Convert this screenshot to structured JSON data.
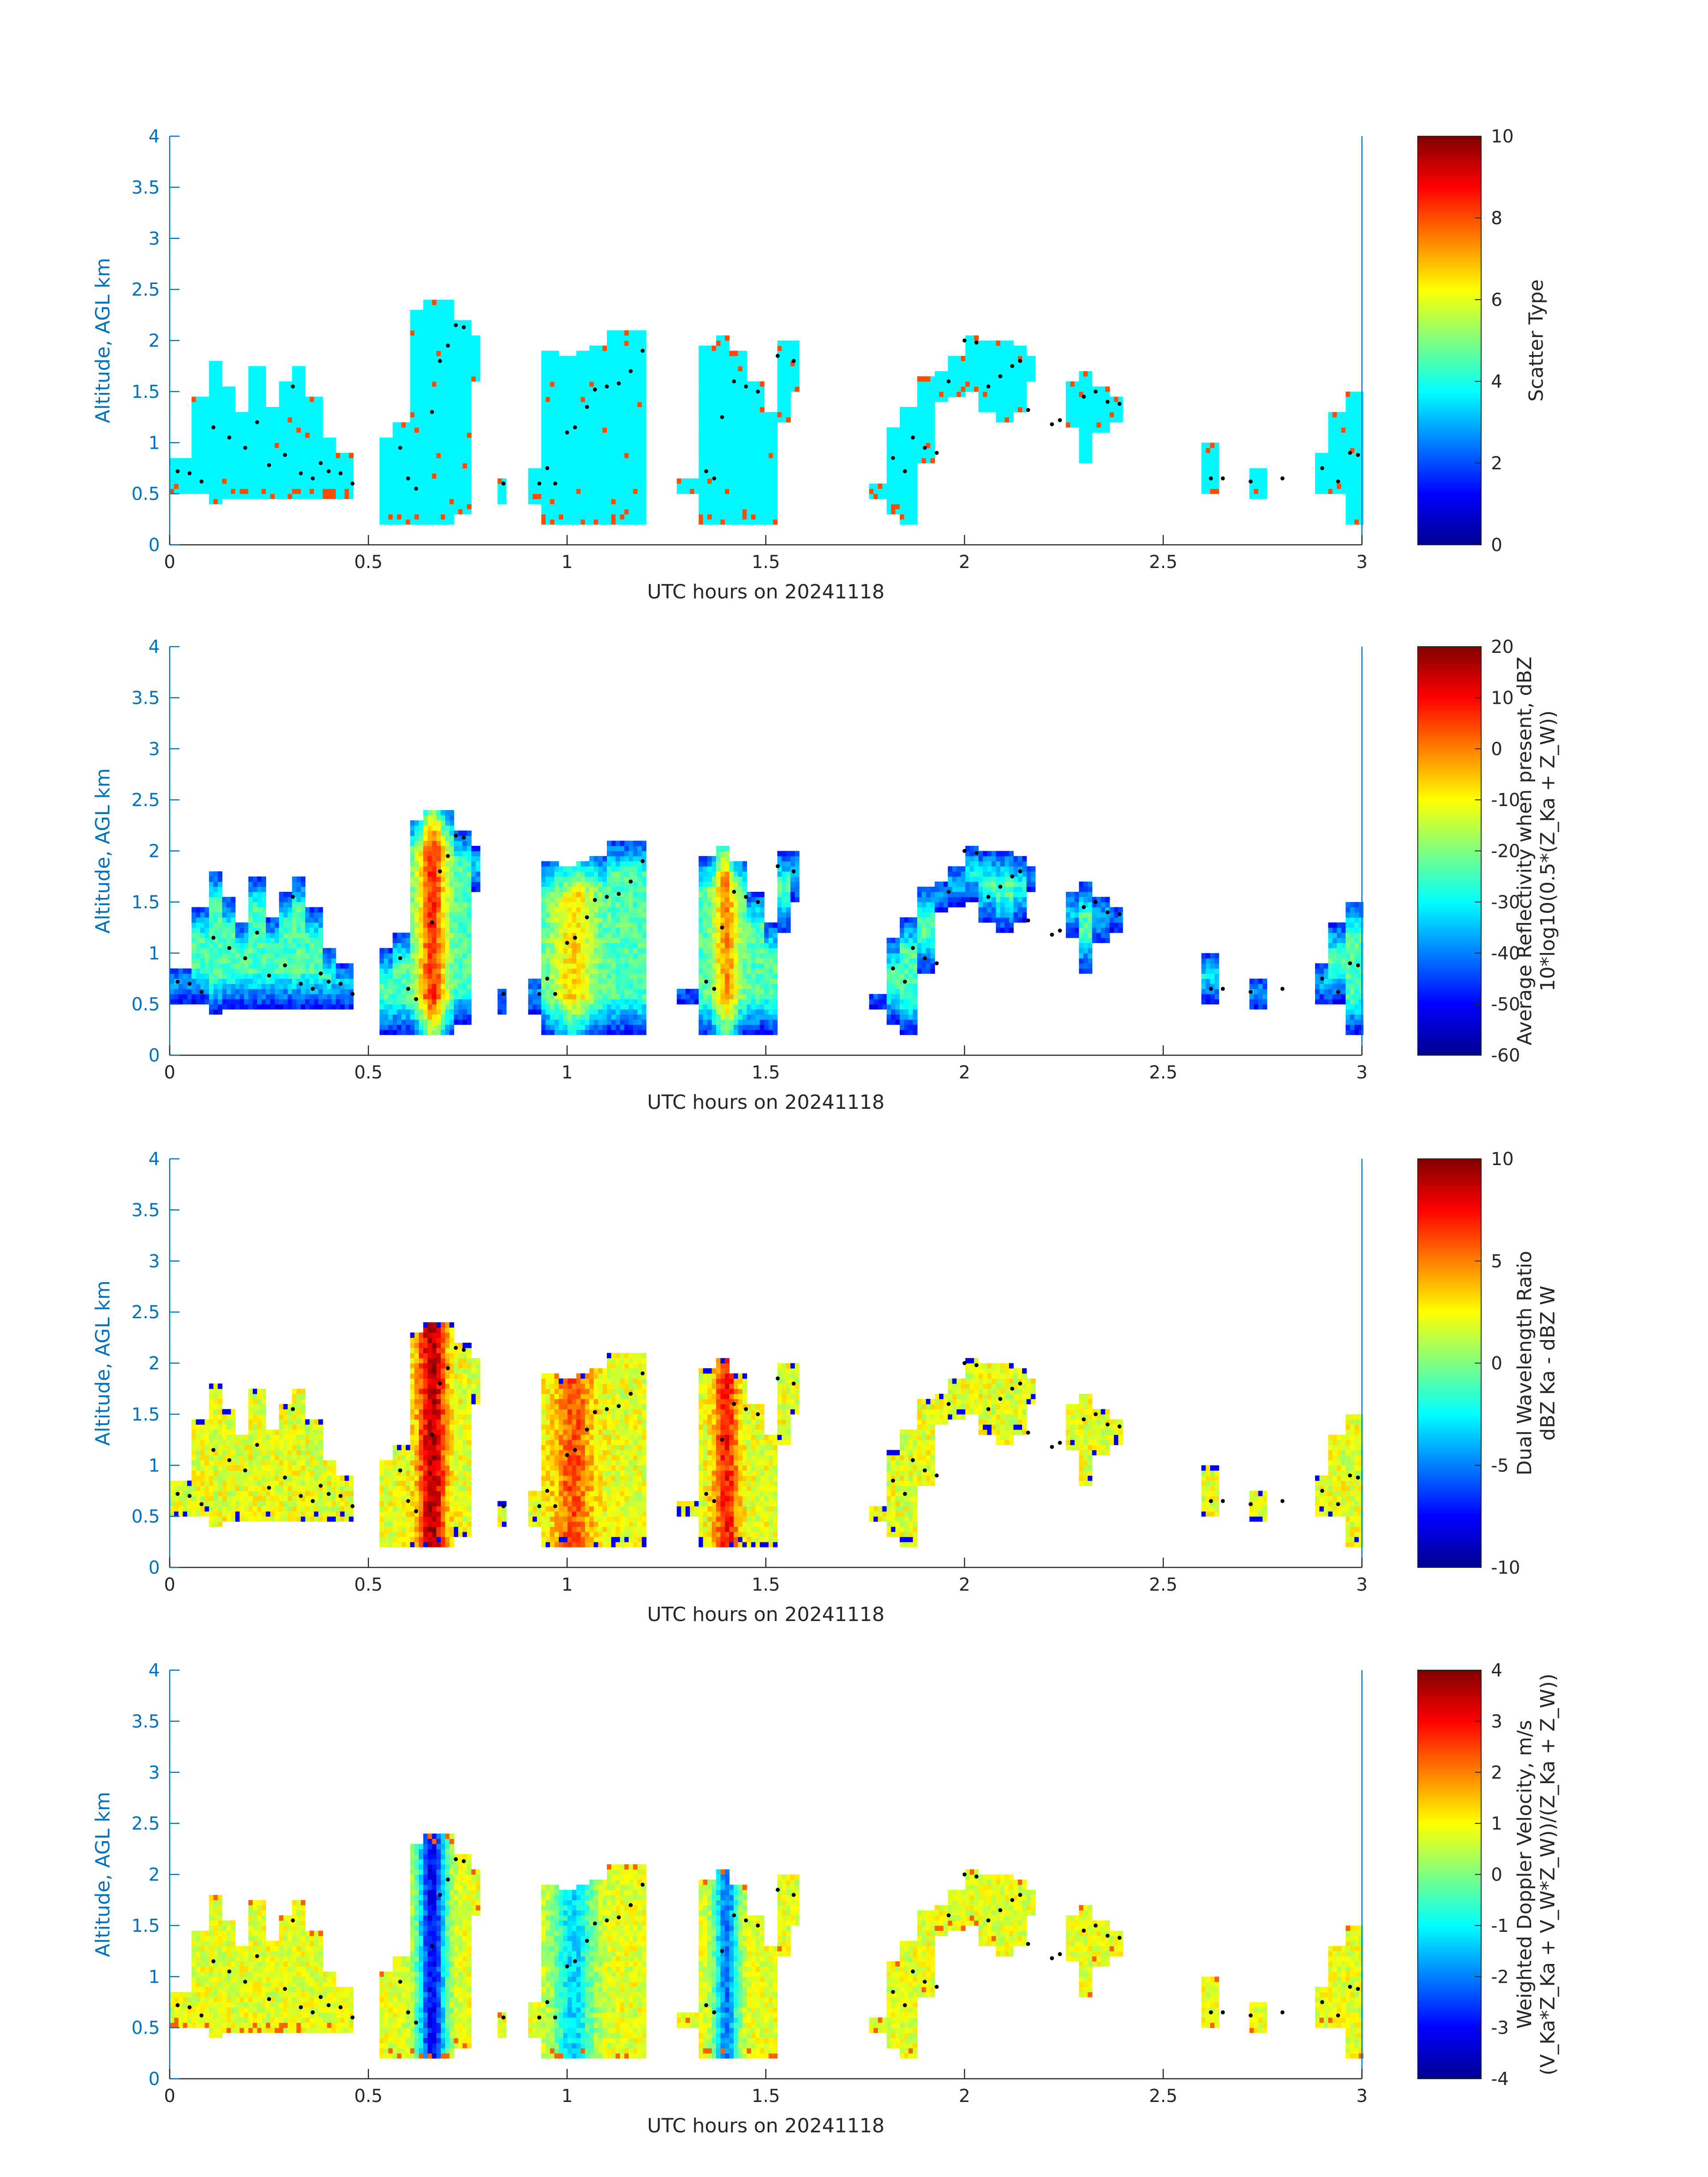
{
  "chart_data": [
    {
      "type": "heatmap",
      "title": "",
      "xlabel": "UTC hours on 20241118",
      "ylabel": "Altitude, AGL km",
      "xlim": [
        0,
        3
      ],
      "ylim": [
        0,
        4
      ],
      "x_ticks": [
        "0",
        "0.5",
        "1",
        "1.5",
        "2",
        "2.5",
        "3"
      ],
      "y_ticks": [
        "0",
        "0.5",
        "1",
        "1.5",
        "2",
        "2.5",
        "3",
        "3.5",
        "4"
      ],
      "colorbar": {
        "label_lines": [
          "Scatter Type"
        ],
        "range": [
          0,
          10
        ],
        "ticks": [
          "0",
          "2",
          "4",
          "6",
          "8",
          "10"
        ]
      },
      "value_note": "Mostly scatter type ~3.7 (cyan), with scattered type ~8 (red-orange) columns near cloud edges",
      "dominant_value": 3.7,
      "secondary_value": 8
    },
    {
      "type": "heatmap",
      "title": "",
      "xlabel": "UTC hours on 20241118",
      "ylabel": "Altitude, AGL km",
      "xlim": [
        0,
        3
      ],
      "ylim": [
        0,
        4
      ],
      "x_ticks": [
        "0",
        "0.5",
        "1",
        "1.5",
        "2",
        "2.5",
        "3"
      ],
      "y_ticks": [
        "0",
        "0.5",
        "1",
        "1.5",
        "2",
        "2.5",
        "3",
        "3.5",
        "4"
      ],
      "colorbar": {
        "label_lines": [
          "Average Reflectivity when present, dBZ",
          "10*log10(0.5*(Z_Ka + Z_W))"
        ],
        "range": [
          -60,
          20
        ],
        "ticks": [
          "-60",
          "-50",
          "-40",
          "-30",
          "-20",
          "-10",
          "0",
          "10",
          "20"
        ]
      },
      "value_note": "Cloud edges ~-55 dBZ, interior ~-25 dBZ, cores near 0.65 h and 1.4 h up to ~+5 dBZ"
    },
    {
      "type": "heatmap",
      "title": "",
      "xlabel": "UTC hours on 20241118",
      "ylabel": "Altitude, AGL km",
      "xlim": [
        0,
        3
      ],
      "ylim": [
        0,
        4
      ],
      "x_ticks": [
        "0",
        "0.5",
        "1",
        "1.5",
        "2",
        "2.5",
        "3"
      ],
      "y_ticks": [
        "0",
        "0.5",
        "1",
        "1.5",
        "2",
        "2.5",
        "3",
        "3.5",
        "4"
      ],
      "colorbar": {
        "label_lines": [
          "Dual Wavelength Ratio",
          "dBZ Ka - dBZ W"
        ],
        "range": [
          -10,
          10
        ],
        "ticks": [
          "-10",
          "-5",
          "0",
          "5",
          "10"
        ]
      },
      "value_note": "Mostly 0 to +3 dB, up to +9 dB in the 0.65 h core"
    },
    {
      "type": "heatmap",
      "title": "",
      "xlabel": "UTC hours on 20241118",
      "ylabel": "Altitude, AGL km",
      "xlim": [
        0,
        3
      ],
      "ylim": [
        0,
        4
      ],
      "x_ticks": [
        "0",
        "0.5",
        "1",
        "1.5",
        "2",
        "2.5",
        "3"
      ],
      "y_ticks": [
        "0",
        "0.5",
        "1",
        "1.5",
        "2",
        "2.5",
        "3",
        "3.5",
        "4"
      ],
      "colorbar": {
        "label_lines": [
          "Weighted Doppler Velocity, m/s",
          "(V_Ka*Z_Ka + V_W*Z_W))/(Z_Ka + Z_W))"
        ],
        "range": [
          -4,
          4
        ],
        "ticks": [
          "-4",
          "-3",
          "-2",
          "-1",
          "0",
          "1",
          "2",
          "3",
          "4"
        ]
      },
      "value_note": "Mostly -0.5 to +1 m/s, downward to ~-3.5 m/s in the 0.65 h core"
    }
  ],
  "cloud_columns": [
    {
      "t0": 0.0,
      "t1": 0.05,
      "base": 0.5,
      "top": 0.85
    },
    {
      "t0": 0.05,
      "t1": 0.1,
      "base": 0.5,
      "top": 1.45
    },
    {
      "t0": 0.1,
      "t1": 0.13,
      "base": 0.4,
      "top": 1.8
    },
    {
      "t0": 0.13,
      "t1": 0.17,
      "base": 0.45,
      "top": 1.55
    },
    {
      "t0": 0.17,
      "t1": 0.2,
      "base": 0.45,
      "top": 1.3
    },
    {
      "t0": 0.2,
      "t1": 0.24,
      "base": 0.45,
      "top": 1.75
    },
    {
      "t0": 0.24,
      "t1": 0.27,
      "base": 0.45,
      "top": 1.35
    },
    {
      "t0": 0.27,
      "t1": 0.31,
      "base": 0.45,
      "top": 1.6
    },
    {
      "t0": 0.31,
      "t1": 0.34,
      "base": 0.45,
      "top": 1.75
    },
    {
      "t0": 0.34,
      "t1": 0.38,
      "base": 0.45,
      "top": 1.45
    },
    {
      "t0": 0.38,
      "t1": 0.42,
      "base": 0.45,
      "top": 1.05
    },
    {
      "t0": 0.42,
      "t1": 0.46,
      "base": 0.45,
      "top": 0.9
    },
    {
      "t0": 0.53,
      "t1": 0.56,
      "base": 0.2,
      "top": 1.05
    },
    {
      "t0": 0.56,
      "t1": 0.6,
      "base": 0.2,
      "top": 1.2
    },
    {
      "t0": 0.6,
      "t1": 0.64,
      "base": 0.2,
      "top": 2.3
    },
    {
      "t0": 0.64,
      "t1": 0.68,
      "base": 0.2,
      "top": 2.35
    },
    {
      "t0": 0.68,
      "t1": 0.72,
      "base": 0.2,
      "top": 2.35
    },
    {
      "t0": 0.72,
      "t1": 0.76,
      "base": 0.3,
      "top": 2.2
    },
    {
      "t0": 0.76,
      "t1": 0.78,
      "base": 1.6,
      "top": 2.05
    },
    {
      "t0": 0.83,
      "t1": 0.85,
      "base": 0.4,
      "top": 0.65
    },
    {
      "t0": 0.9,
      "t1": 0.94,
      "base": 0.4,
      "top": 0.75
    },
    {
      "t0": 0.94,
      "t1": 0.98,
      "base": 0.2,
      "top": 1.9
    },
    {
      "t0": 0.98,
      "t1": 1.02,
      "base": 0.2,
      "top": 1.85
    },
    {
      "t0": 1.02,
      "t1": 1.06,
      "base": 0.2,
      "top": 1.9
    },
    {
      "t0": 1.06,
      "t1": 1.1,
      "base": 0.2,
      "top": 1.95
    },
    {
      "t0": 1.1,
      "t1": 1.14,
      "base": 0.2,
      "top": 2.1
    },
    {
      "t0": 1.14,
      "t1": 1.2,
      "base": 0.2,
      "top": 2.1
    },
    {
      "t0": 1.28,
      "t1": 1.33,
      "base": 0.5,
      "top": 0.65
    },
    {
      "t0": 1.33,
      "t1": 1.37,
      "base": 0.2,
      "top": 1.95
    },
    {
      "t0": 1.37,
      "t1": 1.41,
      "base": 0.2,
      "top": 2.05
    },
    {
      "t0": 1.41,
      "t1": 1.45,
      "base": 0.2,
      "top": 1.9
    },
    {
      "t0": 1.45,
      "t1": 1.5,
      "base": 0.2,
      "top": 1.6
    },
    {
      "t0": 1.5,
      "t1": 1.53,
      "base": 0.2,
      "top": 1.3
    },
    {
      "t0": 1.53,
      "t1": 1.56,
      "base": 1.2,
      "top": 2.0
    },
    {
      "t0": 1.56,
      "t1": 1.58,
      "base": 1.5,
      "top": 2.0
    },
    {
      "t0": 1.76,
      "t1": 1.8,
      "base": 0.45,
      "top": 0.6
    },
    {
      "t0": 1.8,
      "t1": 1.84,
      "base": 0.3,
      "top": 1.15
    },
    {
      "t0": 1.84,
      "t1": 1.88,
      "base": 0.2,
      "top": 1.35
    },
    {
      "t0": 1.88,
      "t1": 1.92,
      "base": 0.8,
      "top": 1.65
    },
    {
      "t0": 1.92,
      "t1": 1.96,
      "base": 1.4,
      "top": 1.7
    },
    {
      "t0": 1.96,
      "t1": 2.0,
      "base": 1.45,
      "top": 1.85
    },
    {
      "t0": 2.0,
      "t1": 2.04,
      "base": 1.5,
      "top": 2.05
    },
    {
      "t0": 2.04,
      "t1": 2.08,
      "base": 1.3,
      "top": 2.0
    },
    {
      "t0": 2.08,
      "t1": 2.12,
      "base": 1.2,
      "top": 2.0
    },
    {
      "t0": 2.12,
      "t1": 2.16,
      "base": 1.3,
      "top": 1.95
    },
    {
      "t0": 2.16,
      "t1": 2.18,
      "base": 1.6,
      "top": 1.85
    },
    {
      "t0": 2.26,
      "t1": 2.29,
      "base": 1.15,
      "top": 1.6
    },
    {
      "t0": 2.29,
      "t1": 2.32,
      "base": 0.8,
      "top": 1.7
    },
    {
      "t0": 2.32,
      "t1": 2.36,
      "base": 1.1,
      "top": 1.55
    },
    {
      "t0": 2.36,
      "t1": 2.4,
      "base": 1.2,
      "top": 1.45
    },
    {
      "t0": 2.6,
      "t1": 2.64,
      "base": 0.5,
      "top": 1.0
    },
    {
      "t0": 2.72,
      "t1": 2.76,
      "base": 0.45,
      "top": 0.75
    },
    {
      "t0": 2.88,
      "t1": 2.92,
      "base": 0.5,
      "top": 0.9
    },
    {
      "t0": 2.92,
      "t1": 2.96,
      "base": 0.5,
      "top": 1.3
    },
    {
      "t0": 2.96,
      "t1": 3.0,
      "base": 0.2,
      "top": 1.5
    }
  ],
  "cloud_top_points": [
    {
      "t": 0.02,
      "alt": 0.72
    },
    {
      "t": 0.05,
      "alt": 0.7
    },
    {
      "t": 0.08,
      "alt": 0.62
    },
    {
      "t": 0.11,
      "alt": 1.15
    },
    {
      "t": 0.15,
      "alt": 1.05
    },
    {
      "t": 0.19,
      "alt": 0.95
    },
    {
      "t": 0.22,
      "alt": 1.2
    },
    {
      "t": 0.25,
      "alt": 0.78
    },
    {
      "t": 0.29,
      "alt": 0.88
    },
    {
      "t": 0.31,
      "alt": 1.55
    },
    {
      "t": 0.33,
      "alt": 0.7
    },
    {
      "t": 0.36,
      "alt": 0.65
    },
    {
      "t": 0.38,
      "alt": 0.8
    },
    {
      "t": 0.4,
      "alt": 0.72
    },
    {
      "t": 0.43,
      "alt": 0.7
    },
    {
      "t": 0.46,
      "alt": 0.6
    },
    {
      "t": 0.58,
      "alt": 0.95
    },
    {
      "t": 0.6,
      "alt": 0.65
    },
    {
      "t": 0.62,
      "alt": 0.55
    },
    {
      "t": 0.66,
      "alt": 1.3
    },
    {
      "t": 0.68,
      "alt": 1.8
    },
    {
      "t": 0.7,
      "alt": 1.95
    },
    {
      "t": 0.72,
      "alt": 2.15
    },
    {
      "t": 0.74,
      "alt": 2.13
    },
    {
      "t": 0.84,
      "alt": 0.6
    },
    {
      "t": 0.93,
      "alt": 0.6
    },
    {
      "t": 0.95,
      "alt": 0.75
    },
    {
      "t": 0.97,
      "alt": 0.6
    },
    {
      "t": 1.0,
      "alt": 1.1
    },
    {
      "t": 1.02,
      "alt": 1.15
    },
    {
      "t": 1.05,
      "alt": 1.35
    },
    {
      "t": 1.07,
      "alt": 1.52
    },
    {
      "t": 1.1,
      "alt": 1.55
    },
    {
      "t": 1.13,
      "alt": 1.58
    },
    {
      "t": 1.16,
      "alt": 1.7
    },
    {
      "t": 1.19,
      "alt": 1.9
    },
    {
      "t": 1.35,
      "alt": 0.72
    },
    {
      "t": 1.37,
      "alt": 0.65
    },
    {
      "t": 1.39,
      "alt": 1.25
    },
    {
      "t": 1.42,
      "alt": 1.6
    },
    {
      "t": 1.45,
      "alt": 1.55
    },
    {
      "t": 1.48,
      "alt": 1.5
    },
    {
      "t": 1.53,
      "alt": 1.85
    },
    {
      "t": 1.57,
      "alt": 1.8
    },
    {
      "t": 1.82,
      "alt": 0.85
    },
    {
      "t": 1.85,
      "alt": 0.72
    },
    {
      "t": 1.87,
      "alt": 1.05
    },
    {
      "t": 1.9,
      "alt": 0.95
    },
    {
      "t": 1.93,
      "alt": 0.9
    },
    {
      "t": 1.96,
      "alt": 1.6
    },
    {
      "t": 2.0,
      "alt": 2.0
    },
    {
      "t": 2.03,
      "alt": 1.98
    },
    {
      "t": 2.06,
      "alt": 1.55
    },
    {
      "t": 2.09,
      "alt": 1.65
    },
    {
      "t": 2.12,
      "alt": 1.75
    },
    {
      "t": 2.14,
      "alt": 1.8
    },
    {
      "t": 2.16,
      "alt": 1.32
    },
    {
      "t": 2.22,
      "alt": 1.18
    },
    {
      "t": 2.24,
      "alt": 1.22
    },
    {
      "t": 2.3,
      "alt": 1.45
    },
    {
      "t": 2.33,
      "alt": 1.5
    },
    {
      "t": 2.36,
      "alt": 1.4
    },
    {
      "t": 2.39,
      "alt": 1.38
    },
    {
      "t": 2.62,
      "alt": 0.65
    },
    {
      "t": 2.65,
      "alt": 0.65
    },
    {
      "t": 2.72,
      "alt": 0.62
    },
    {
      "t": 2.8,
      "alt": 0.65
    },
    {
      "t": 2.9,
      "alt": 0.75
    },
    {
      "t": 2.94,
      "alt": 0.62
    },
    {
      "t": 2.97,
      "alt": 0.9
    },
    {
      "t": 2.99,
      "alt": 0.88
    }
  ]
}
